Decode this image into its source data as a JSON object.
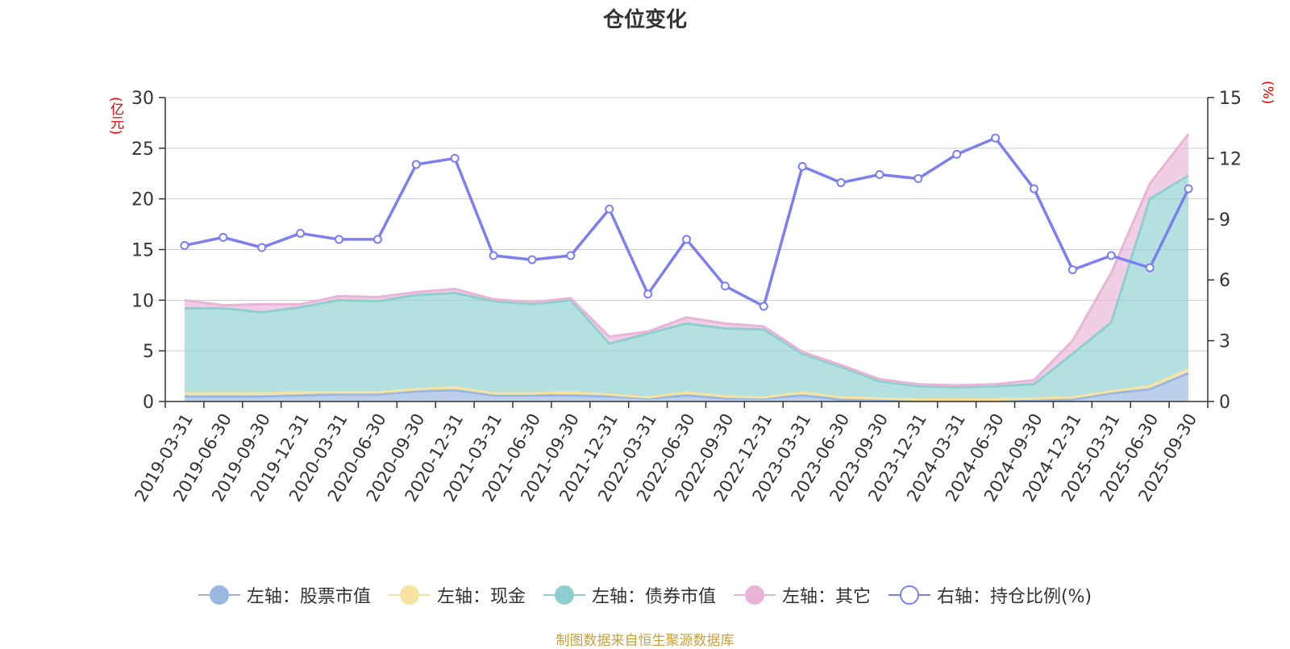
{
  "chart_data": {
    "type": "area",
    "title": "仓位变化",
    "source_note": "制图数据来自恒生聚源数据库",
    "y_left": {
      "unit": "(亿元)",
      "range": [
        0,
        30
      ],
      "ticks": [
        "0",
        "5",
        "10",
        "15",
        "20",
        "25",
        "30"
      ]
    },
    "y_right": {
      "unit": "(%)",
      "range": [
        0,
        15
      ],
      "ticks": [
        "0",
        "3",
        "6",
        "9",
        "12",
        "15"
      ]
    },
    "categories": [
      "2019-03-31",
      "2019-06-30",
      "2019-09-30",
      "2019-12-31",
      "2020-03-31",
      "2020-06-30",
      "2020-09-30",
      "2020-12-31",
      "2021-03-31",
      "2021-06-30",
      "2021-09-30",
      "2021-12-31",
      "2022-03-31",
      "2022-06-30",
      "2022-09-30",
      "2022-12-31",
      "2023-03-31",
      "2023-06-30",
      "2023-09-30",
      "2023-12-31",
      "2024-03-31",
      "2024-06-30",
      "2024-09-30",
      "2024-12-31",
      "2025-03-31",
      "2025-06-30",
      "2025-09-30"
    ],
    "series": [
      {
        "name": "左轴：股票市值",
        "axis": "left",
        "stack": true,
        "color": "#9ab7e0",
        "values": [
          0.5,
          0.5,
          0.5,
          0.6,
          0.7,
          0.7,
          1.0,
          1.1,
          0.6,
          0.6,
          0.6,
          0.5,
          0.3,
          0.6,
          0.3,
          0.3,
          0.6,
          0.2,
          0.2,
          0.1,
          0.1,
          0.1,
          0.1,
          0.2,
          0.8,
          1.2,
          2.8
        ]
      },
      {
        "name": "左轴：现金",
        "axis": "left",
        "stack": true,
        "color": "#f6e3a1",
        "values": [
          0.3,
          0.3,
          0.3,
          0.3,
          0.2,
          0.2,
          0.2,
          0.3,
          0.2,
          0.2,
          0.3,
          0.2,
          0.1,
          0.3,
          0.2,
          0.1,
          0.3,
          0.2,
          0.1,
          0.1,
          0.1,
          0.1,
          0.2,
          0.2,
          0.2,
          0.3,
          0.4
        ]
      },
      {
        "name": "左轴：债券市值",
        "axis": "left",
        "stack": true,
        "color": "#8dcfd0",
        "values": [
          8.4,
          8.4,
          8.0,
          8.4,
          9.1,
          9.0,
          9.3,
          9.3,
          9.1,
          8.8,
          9.1,
          5.0,
          6.3,
          6.8,
          6.7,
          6.7,
          3.8,
          3.0,
          1.7,
          1.3,
          1.2,
          1.3,
          1.4,
          4.3,
          6.8,
          18.5,
          19.1
        ]
      },
      {
        "name": "左轴：其它",
        "axis": "left",
        "stack": true,
        "color": "#e8b4d8",
        "values": [
          0.8,
          0.3,
          0.8,
          0.3,
          0.4,
          0.4,
          0.3,
          0.4,
          0.2,
          0.2,
          0.2,
          0.7,
          0.2,
          0.6,
          0.5,
          0.3,
          0.2,
          0.2,
          0.2,
          0.2,
          0.2,
          0.2,
          0.4,
          1.3,
          4.9,
          1.5,
          4.1
        ]
      },
      {
        "name": "右轴：持仓比例(%)",
        "axis": "right",
        "stack": false,
        "color": "#7b7ff0",
        "values": [
          7.7,
          8.1,
          7.6,
          8.3,
          8.0,
          8.0,
          11.7,
          12.0,
          7.2,
          7.0,
          7.2,
          9.5,
          5.3,
          8.0,
          5.7,
          4.7,
          11.6,
          10.8,
          11.2,
          11.0,
          12.2,
          13.0,
          10.5,
          6.5,
          7.2,
          6.6,
          10.5
        ]
      }
    ]
  }
}
